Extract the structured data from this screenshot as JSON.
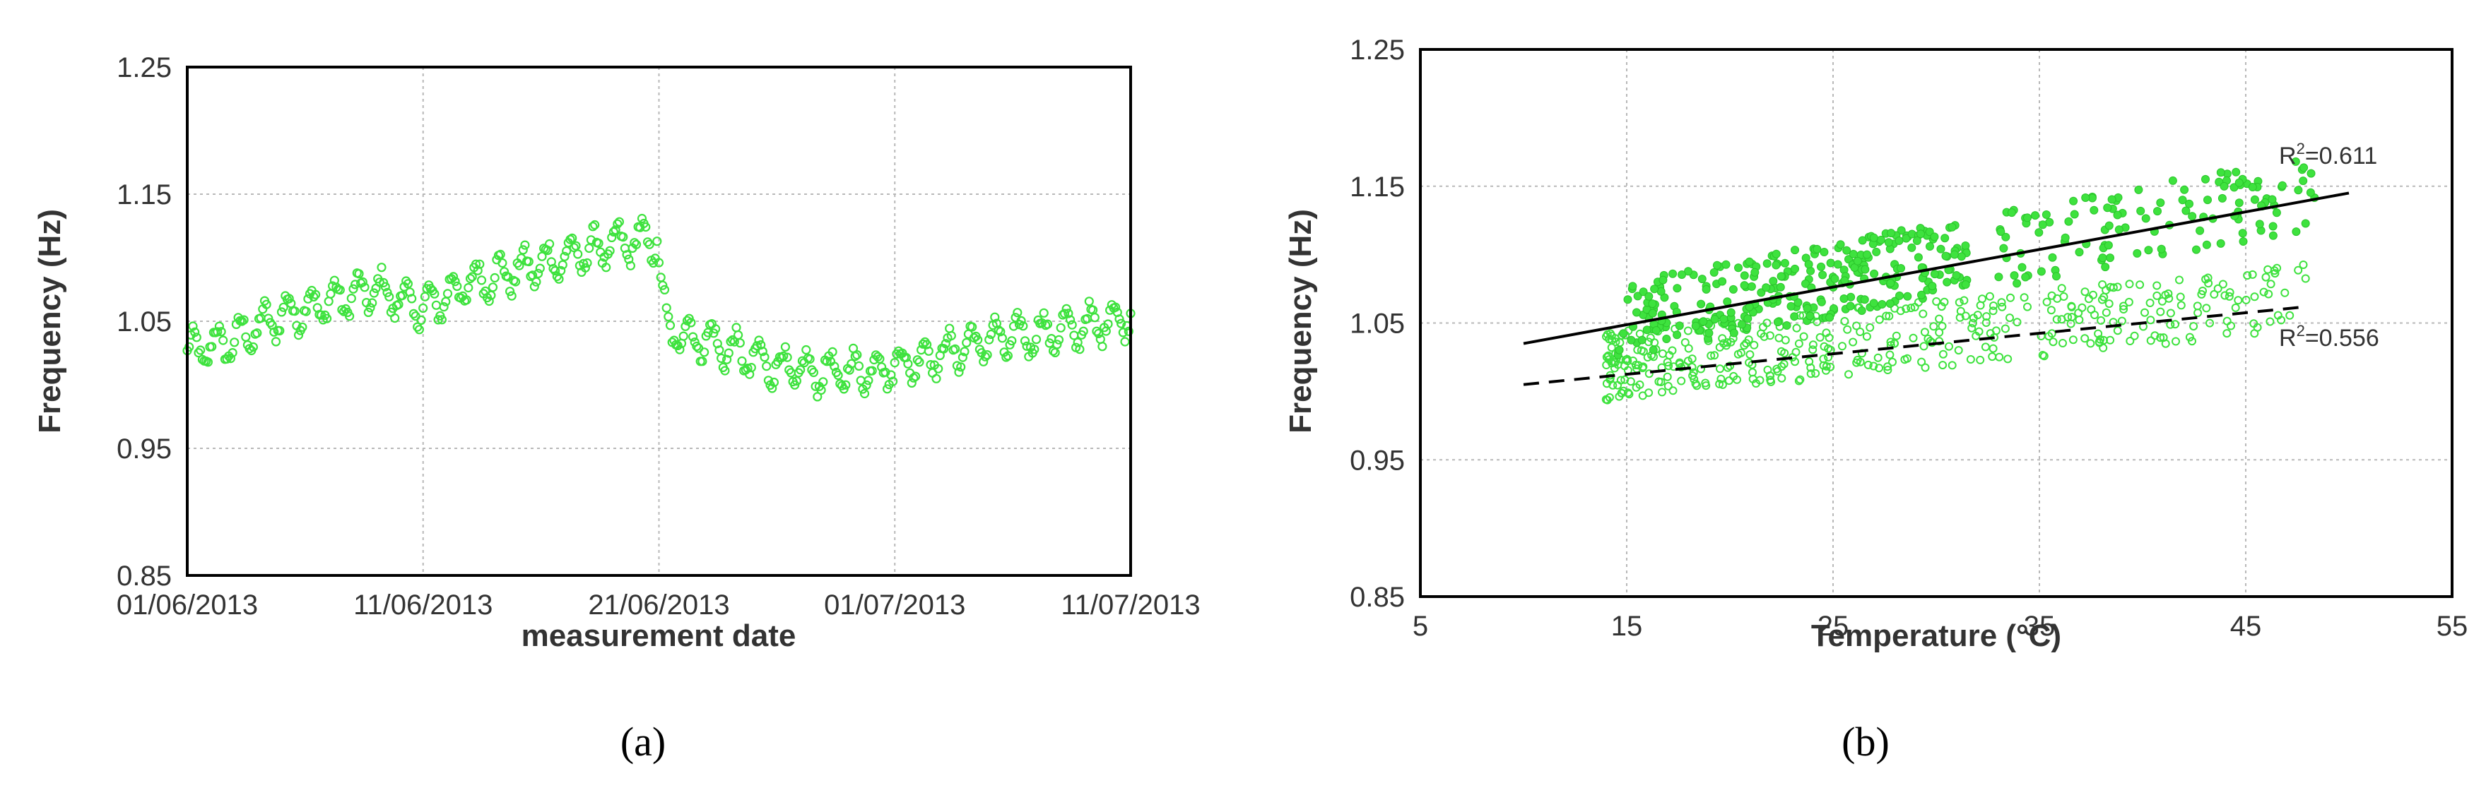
{
  "colors": {
    "points": "#3ee23e",
    "grid": "#b8b8b8",
    "axis": "#000000",
    "trend": "#000000"
  },
  "chart_data": [
    {
      "id": "a",
      "type": "scatter",
      "caption": "(a)",
      "xlabel": "measurement date",
      "ylabel": "Frequency (Hz)",
      "x_ticks": [
        "01/06/2013",
        "11/06/2013",
        "21/06/2013",
        "01/07/2013",
        "11/07/2013"
      ],
      "xlim": [
        "2013-06-01",
        "2013-07-11"
      ],
      "ylim": [
        0.85,
        1.25
      ],
      "y_ticks": [
        "0.85",
        "0.95",
        "1.05",
        "1.15",
        "1.25"
      ],
      "grid": true,
      "marker": "hollow circle",
      "series": [
        {
          "trend_points": [
            [
              "2013-06-01",
              1.025
            ],
            [
              "2013-06-03",
              1.035
            ],
            [
              "2013-06-05",
              1.055
            ],
            [
              "2013-06-07",
              1.065
            ],
            [
              "2013-06-09",
              1.075
            ],
            [
              "2013-06-11",
              1.06
            ],
            [
              "2013-06-13",
              1.08
            ],
            [
              "2013-06-15",
              1.09
            ],
            [
              "2013-06-17",
              1.1
            ],
            [
              "2013-06-19",
              1.11
            ],
            [
              "2013-06-21",
              1.115
            ],
            [
              "2013-06-21",
              1.045
            ],
            [
              "2013-06-23",
              1.035
            ],
            [
              "2013-06-25",
              1.02
            ],
            [
              "2013-06-27",
              1.01
            ],
            [
              "2013-06-29",
              1.01
            ],
            [
              "2013-07-01",
              1.015
            ],
            [
              "2013-07-03",
              1.025
            ],
            [
              "2013-07-05",
              1.035
            ],
            [
              "2013-07-07",
              1.04
            ],
            [
              "2013-07-09",
              1.045
            ],
            [
              "2013-07-11",
              1.055
            ]
          ]
        }
      ]
    },
    {
      "id": "b",
      "type": "scatter",
      "caption": "(b)",
      "xlabel": "Temperature (°C)",
      "ylabel": "Frequency (Hz)",
      "xlim": [
        5,
        55
      ],
      "x_ticks": [
        "5",
        "15",
        "25",
        "35",
        "45",
        "55"
      ],
      "ylim": [
        0.85,
        1.25
      ],
      "y_ticks": [
        "0.85",
        "0.95",
        "1.05",
        "1.15",
        "1.25"
      ],
      "grid": true,
      "series": [
        {
          "marker": "filled circle",
          "fit": {
            "x": [
              10,
              50
            ],
            "y": [
              1.035,
              1.145
            ],
            "style": "solid",
            "label": "R²=0.611",
            "label_base": "R",
            "label_sup": "2",
            "label_rest": "=0.611"
          }
        },
        {
          "marker": "hollow circle",
          "fit": {
            "x": [
              10,
              48
            ],
            "y": [
              1.005,
              1.062
            ],
            "style": "dashed",
            "label": "R²=0.556",
            "label_base": "R",
            "label_sup": "2",
            "label_rest": "=0.556"
          }
        }
      ]
    }
  ]
}
